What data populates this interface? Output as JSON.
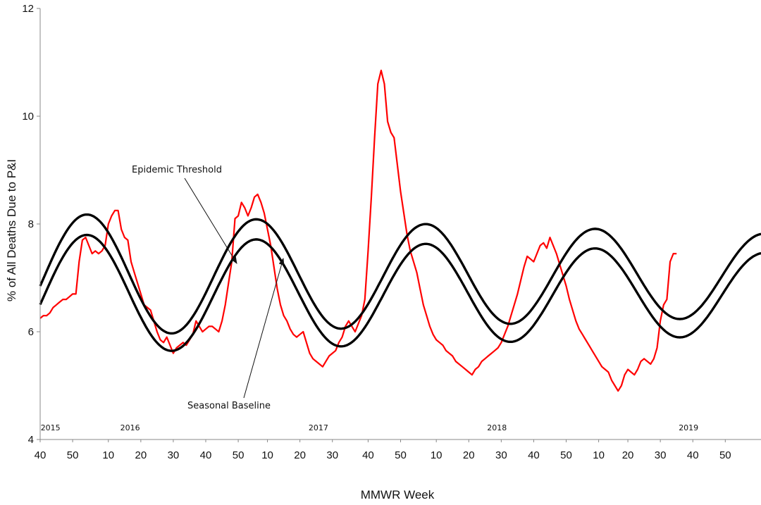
{
  "chart_data": {
    "type": "line",
    "title": "",
    "xlabel": "MMWR Week",
    "ylabel": "% of All Deaths Due to P&I",
    "ylim": [
      4,
      12
    ],
    "y_ticks": [
      "4",
      "6",
      "8",
      "10",
      "12"
    ],
    "x_tick_labels": [
      "40",
      "50",
      "10",
      "20",
      "30",
      "40",
      "50",
      "10",
      "20",
      "30",
      "40",
      "50",
      "10",
      "20",
      "30",
      "40",
      "50",
      "10",
      "20",
      "30",
      "40",
      "50"
    ],
    "year_labels": [
      "2015",
      "2016",
      "2017",
      "2018",
      "2019"
    ],
    "x_range_weeks": [
      0,
      222
    ],
    "series": [
      {
        "role": "observed",
        "color": "#ff0000",
        "points": [
          [
            0,
            6.25
          ],
          [
            1,
            6.3
          ],
          [
            2,
            6.3
          ],
          [
            3,
            6.35
          ],
          [
            4,
            6.45
          ],
          [
            5,
            6.5
          ],
          [
            6,
            6.55
          ],
          [
            7,
            6.6
          ],
          [
            8,
            6.6
          ],
          [
            9,
            6.65
          ],
          [
            10,
            6.7
          ],
          [
            11,
            6.7
          ],
          [
            12,
            7.3
          ],
          [
            13,
            7.7
          ],
          [
            14,
            7.75
          ],
          [
            15,
            7.6
          ],
          [
            16,
            7.45
          ],
          [
            17,
            7.5
          ],
          [
            18,
            7.45
          ],
          [
            19,
            7.5
          ],
          [
            20,
            7.6
          ],
          [
            21,
            8.0
          ],
          [
            22,
            8.15
          ],
          [
            23,
            8.25
          ],
          [
            24,
            8.25
          ],
          [
            25,
            7.9
          ],
          [
            26,
            7.75
          ],
          [
            27,
            7.7
          ],
          [
            28,
            7.3
          ],
          [
            29,
            7.1
          ],
          [
            30,
            6.9
          ],
          [
            31,
            6.7
          ],
          [
            32,
            6.5
          ],
          [
            33,
            6.45
          ],
          [
            34,
            6.4
          ],
          [
            35,
            6.2
          ],
          [
            36,
            6.0
          ],
          [
            37,
            5.85
          ],
          [
            38,
            5.8
          ],
          [
            39,
            5.9
          ],
          [
            40,
            5.75
          ],
          [
            41,
            5.6
          ],
          [
            42,
            5.7
          ],
          [
            43,
            5.75
          ],
          [
            44,
            5.8
          ],
          [
            45,
            5.75
          ],
          [
            46,
            5.85
          ],
          [
            47,
            5.95
          ],
          [
            48,
            6.2
          ],
          [
            49,
            6.1
          ],
          [
            50,
            6.0
          ],
          [
            51,
            6.05
          ],
          [
            52,
            6.1
          ],
          [
            53,
            6.1
          ],
          [
            54,
            6.05
          ],
          [
            55,
            6.0
          ],
          [
            56,
            6.2
          ],
          [
            57,
            6.5
          ],
          [
            58,
            6.9
          ],
          [
            59,
            7.3
          ],
          [
            60,
            8.1
          ],
          [
            61,
            8.15
          ],
          [
            62,
            8.4
          ],
          [
            63,
            8.3
          ],
          [
            64,
            8.15
          ],
          [
            65,
            8.3
          ],
          [
            66,
            8.5
          ],
          [
            67,
            8.55
          ],
          [
            68,
            8.4
          ],
          [
            69,
            8.2
          ],
          [
            70,
            7.9
          ],
          [
            71,
            7.6
          ],
          [
            72,
            7.2
          ],
          [
            73,
            6.8
          ],
          [
            74,
            6.5
          ],
          [
            75,
            6.3
          ],
          [
            76,
            6.2
          ],
          [
            77,
            6.05
          ],
          [
            78,
            5.95
          ],
          [
            79,
            5.9
          ],
          [
            80,
            5.95
          ],
          [
            81,
            6.0
          ],
          [
            82,
            5.8
          ],
          [
            83,
            5.6
          ],
          [
            84,
            5.5
          ],
          [
            85,
            5.45
          ],
          [
            86,
            5.4
          ],
          [
            87,
            5.35
          ],
          [
            88,
            5.45
          ],
          [
            89,
            5.55
          ],
          [
            90,
            5.6
          ],
          [
            91,
            5.65
          ],
          [
            92,
            5.8
          ],
          [
            93,
            5.9
          ],
          [
            94,
            6.1
          ],
          [
            95,
            6.2
          ],
          [
            96,
            6.1
          ],
          [
            97,
            6.0
          ],
          [
            98,
            6.15
          ],
          [
            99,
            6.3
          ],
          [
            100,
            6.6
          ],
          [
            101,
            7.5
          ],
          [
            102,
            8.5
          ],
          [
            103,
            9.6
          ],
          [
            104,
            10.6
          ],
          [
            105,
            10.85
          ],
          [
            106,
            10.6
          ],
          [
            107,
            9.9
          ],
          [
            108,
            9.7
          ],
          [
            109,
            9.6
          ],
          [
            110,
            9.1
          ],
          [
            111,
            8.6
          ],
          [
            112,
            8.2
          ],
          [
            113,
            7.8
          ],
          [
            114,
            7.5
          ],
          [
            115,
            7.3
          ],
          [
            116,
            7.1
          ],
          [
            117,
            6.8
          ],
          [
            118,
            6.5
          ],
          [
            119,
            6.3
          ],
          [
            120,
            6.1
          ],
          [
            121,
            5.95
          ],
          [
            122,
            5.85
          ],
          [
            123,
            5.8
          ],
          [
            124,
            5.75
          ],
          [
            125,
            5.65
          ],
          [
            126,
            5.6
          ],
          [
            127,
            5.55
          ],
          [
            128,
            5.45
          ],
          [
            129,
            5.4
          ],
          [
            130,
            5.35
          ],
          [
            131,
            5.3
          ],
          [
            132,
            5.25
          ],
          [
            133,
            5.2
          ],
          [
            134,
            5.3
          ],
          [
            135,
            5.35
          ],
          [
            136,
            5.45
          ],
          [
            137,
            5.5
          ],
          [
            138,
            5.55
          ],
          [
            139,
            5.6
          ],
          [
            140,
            5.65
          ],
          [
            141,
            5.7
          ],
          [
            142,
            5.8
          ],
          [
            143,
            5.95
          ],
          [
            144,
            6.1
          ],
          [
            145,
            6.3
          ],
          [
            146,
            6.5
          ],
          [
            147,
            6.7
          ],
          [
            148,
            6.95
          ],
          [
            149,
            7.2
          ],
          [
            150,
            7.4
          ],
          [
            151,
            7.35
          ],
          [
            152,
            7.3
          ],
          [
            153,
            7.45
          ],
          [
            154,
            7.6
          ],
          [
            155,
            7.65
          ],
          [
            156,
            7.55
          ],
          [
            157,
            7.75
          ],
          [
            158,
            7.6
          ],
          [
            159,
            7.45
          ],
          [
            160,
            7.25
          ],
          [
            161,
            7.05
          ],
          [
            162,
            6.85
          ],
          [
            163,
            6.6
          ],
          [
            164,
            6.4
          ],
          [
            165,
            6.2
          ],
          [
            166,
            6.05
          ],
          [
            167,
            5.95
          ],
          [
            168,
            5.85
          ],
          [
            169,
            5.75
          ],
          [
            170,
            5.65
          ],
          [
            171,
            5.55
          ],
          [
            172,
            5.45
          ],
          [
            173,
            5.35
          ],
          [
            174,
            5.3
          ],
          [
            175,
            5.25
          ],
          [
            176,
            5.1
          ],
          [
            177,
            5.0
          ],
          [
            178,
            4.9
          ],
          [
            179,
            5.0
          ],
          [
            180,
            5.2
          ],
          [
            181,
            5.3
          ],
          [
            182,
            5.25
          ],
          [
            183,
            5.2
          ],
          [
            184,
            5.3
          ],
          [
            185,
            5.45
          ],
          [
            186,
            5.5
          ],
          [
            187,
            5.45
          ],
          [
            188,
            5.4
          ],
          [
            189,
            5.5
          ],
          [
            190,
            5.7
          ],
          [
            191,
            6.2
          ],
          [
            192,
            6.5
          ],
          [
            193,
            6.6
          ],
          [
            194,
            7.3
          ],
          [
            195,
            7.45
          ],
          [
            196,
            7.45
          ]
        ]
      },
      {
        "name": "Epidemic Threshold",
        "role": "threshold",
        "color": "#000000",
        "model": {
          "base": 7.05,
          "amp": 1.15,
          "amp_slope": -0.0017,
          "peak_week": 14.5,
          "period": 52.18
        },
        "range": [
          0,
          222
        ]
      },
      {
        "name": "Seasonal Baseline",
        "role": "baseline",
        "color": "#000000",
        "model": {
          "base": 6.7,
          "amp": 1.12,
          "amp_slope": -0.0016,
          "peak_week": 14.5,
          "period": 52.18
        },
        "range": [
          0,
          222
        ]
      }
    ],
    "annotations": [
      {
        "text": "Epidemic Threshold",
        "target_series": "threshold"
      },
      {
        "text": "Seasonal Baseline",
        "target_series": "baseline"
      }
    ],
    "grid": false,
    "legend": "none"
  }
}
